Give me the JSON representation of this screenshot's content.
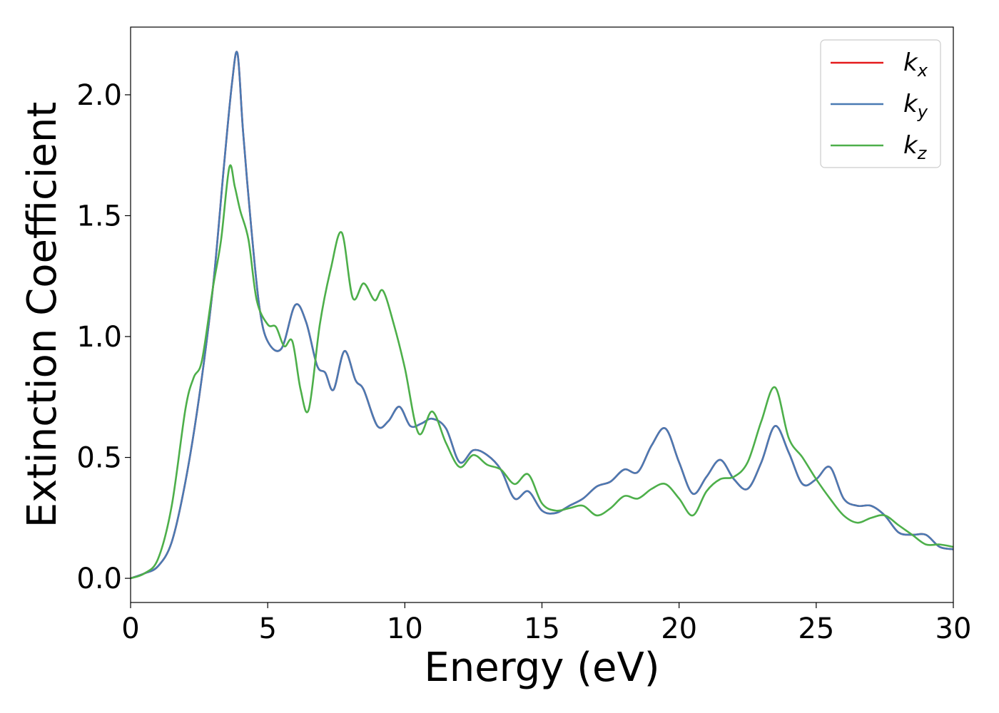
{
  "chart_data": {
    "type": "line",
    "xlabel": "Energy (eV)",
    "ylabel": "Extinction Coefficient",
    "xlim": [
      0,
      30
    ],
    "ylim": [
      -0.1,
      2.28
    ],
    "xticks": [
      0,
      5,
      10,
      15,
      20,
      25,
      30
    ],
    "xtick_labels": [
      "0",
      "5",
      "10",
      "15",
      "20",
      "25",
      "30"
    ],
    "yticks": [
      0.0,
      0.5,
      1.0,
      1.5,
      2.0
    ],
    "ytick_labels": [
      "0.0",
      "0.5",
      "1.0",
      "1.5",
      "2.0"
    ],
    "grid": false,
    "legend_position": "top-right",
    "series": [
      {
        "name": "k",
        "subscript": "x",
        "color": "#e41a1c",
        "x": [
          0,
          0.5,
          1.0,
          1.5,
          2.0,
          2.5,
          3.0,
          3.4,
          3.7,
          3.9,
          4.1,
          4.4,
          4.7,
          5.0,
          5.5,
          6.0,
          6.4,
          6.8,
          7.1,
          7.4,
          7.8,
          8.2,
          8.5,
          9.0,
          9.4,
          9.8,
          10.2,
          10.6,
          11.0,
          11.5,
          12.0,
          12.5,
          13.0,
          13.5,
          14.0,
          14.5,
          15.0,
          15.5,
          16.0,
          16.5,
          17.0,
          17.5,
          18.0,
          18.5,
          19.0,
          19.5,
          20.0,
          20.5,
          21.0,
          21.5,
          22.0,
          22.5,
          23.0,
          23.5,
          24.0,
          24.5,
          25.0,
          25.5,
          26.0,
          26.5,
          27.0,
          27.5,
          28.0,
          28.5,
          29.0,
          29.5,
          30.0
        ],
        "y": [
          0.0,
          0.02,
          0.05,
          0.15,
          0.4,
          0.75,
          1.2,
          1.7,
          2.05,
          2.17,
          1.85,
          1.45,
          1.12,
          0.98,
          0.95,
          1.13,
          1.06,
          0.88,
          0.85,
          0.78,
          0.94,
          0.82,
          0.78,
          0.63,
          0.65,
          0.71,
          0.63,
          0.64,
          0.66,
          0.62,
          0.48,
          0.53,
          0.51,
          0.45,
          0.33,
          0.36,
          0.28,
          0.27,
          0.3,
          0.33,
          0.38,
          0.4,
          0.45,
          0.44,
          0.55,
          0.62,
          0.48,
          0.35,
          0.42,
          0.49,
          0.41,
          0.37,
          0.48,
          0.63,
          0.52,
          0.39,
          0.41,
          0.46,
          0.33,
          0.3,
          0.3,
          0.26,
          0.19,
          0.18,
          0.18,
          0.13,
          0.12
        ]
      },
      {
        "name": "k",
        "subscript": "y",
        "color": "#4a7ab3",
        "x": [
          0,
          0.5,
          1.0,
          1.5,
          2.0,
          2.5,
          3.0,
          3.4,
          3.7,
          3.9,
          4.1,
          4.4,
          4.7,
          5.0,
          5.5,
          6.0,
          6.4,
          6.8,
          7.1,
          7.4,
          7.8,
          8.2,
          8.5,
          9.0,
          9.4,
          9.8,
          10.2,
          10.6,
          11.0,
          11.5,
          12.0,
          12.5,
          13.0,
          13.5,
          14.0,
          14.5,
          15.0,
          15.5,
          16.0,
          16.5,
          17.0,
          17.5,
          18.0,
          18.5,
          19.0,
          19.5,
          20.0,
          20.5,
          21.0,
          21.5,
          22.0,
          22.5,
          23.0,
          23.5,
          24.0,
          24.5,
          25.0,
          25.5,
          26.0,
          26.5,
          27.0,
          27.5,
          28.0,
          28.5,
          29.0,
          29.5,
          30.0
        ],
        "y": [
          0.0,
          0.02,
          0.05,
          0.15,
          0.4,
          0.75,
          1.2,
          1.7,
          2.05,
          2.17,
          1.85,
          1.45,
          1.12,
          0.98,
          0.95,
          1.13,
          1.06,
          0.88,
          0.85,
          0.78,
          0.94,
          0.82,
          0.78,
          0.63,
          0.65,
          0.71,
          0.63,
          0.64,
          0.66,
          0.62,
          0.48,
          0.53,
          0.51,
          0.45,
          0.33,
          0.36,
          0.28,
          0.27,
          0.3,
          0.33,
          0.38,
          0.4,
          0.45,
          0.44,
          0.55,
          0.62,
          0.48,
          0.35,
          0.42,
          0.49,
          0.41,
          0.37,
          0.48,
          0.63,
          0.52,
          0.39,
          0.41,
          0.46,
          0.33,
          0.3,
          0.3,
          0.26,
          0.19,
          0.18,
          0.18,
          0.13,
          0.12
        ]
      },
      {
        "name": "k",
        "subscript": "z",
        "color": "#4daf4a",
        "x": [
          0,
          0.5,
          1.0,
          1.5,
          2.0,
          2.3,
          2.6,
          3.0,
          3.3,
          3.6,
          3.8,
          4.0,
          4.3,
          4.6,
          5.0,
          5.3,
          5.6,
          5.9,
          6.2,
          6.5,
          6.9,
          7.3,
          7.7,
          8.1,
          8.5,
          8.9,
          9.2,
          9.6,
          10.0,
          10.5,
          11.0,
          11.5,
          12.0,
          12.5,
          13.0,
          13.5,
          14.0,
          14.5,
          15.0,
          15.5,
          16.0,
          16.5,
          17.0,
          17.5,
          18.0,
          18.5,
          19.0,
          19.5,
          20.0,
          20.5,
          21.0,
          21.5,
          22.0,
          22.5,
          23.0,
          23.5,
          24.0,
          24.5,
          25.0,
          25.5,
          26.0,
          26.5,
          27.0,
          27.5,
          28.0,
          28.5,
          29.0,
          29.5,
          30.0
        ],
        "y": [
          0.0,
          0.02,
          0.08,
          0.3,
          0.7,
          0.83,
          0.9,
          1.2,
          1.4,
          1.7,
          1.62,
          1.52,
          1.4,
          1.15,
          1.05,
          1.04,
          0.96,
          0.98,
          0.78,
          0.7,
          1.05,
          1.28,
          1.43,
          1.16,
          1.22,
          1.15,
          1.19,
          1.05,
          0.87,
          0.6,
          0.69,
          0.56,
          0.46,
          0.51,
          0.47,
          0.45,
          0.39,
          0.43,
          0.31,
          0.28,
          0.29,
          0.3,
          0.26,
          0.29,
          0.34,
          0.33,
          0.37,
          0.39,
          0.33,
          0.26,
          0.36,
          0.41,
          0.42,
          0.48,
          0.65,
          0.79,
          0.58,
          0.5,
          0.41,
          0.33,
          0.26,
          0.23,
          0.25,
          0.26,
          0.22,
          0.18,
          0.14,
          0.14,
          0.13
        ]
      }
    ]
  }
}
